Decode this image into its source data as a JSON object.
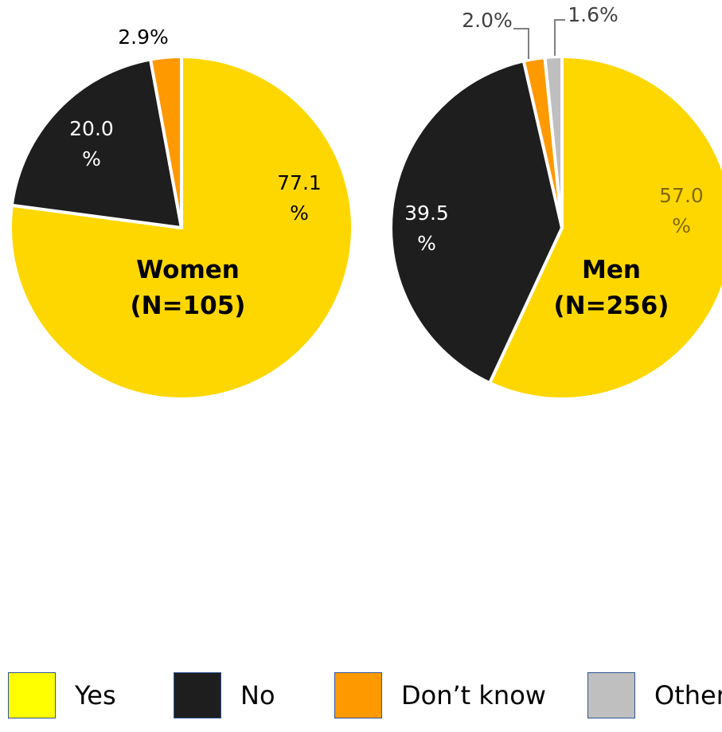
{
  "colors": {
    "Yes": "#ffd700",
    "No": "#1e1e1e",
    "Dont_know": "#ff9900",
    "Other": "#bfbfbf"
  },
  "chart_data": [
    {
      "type": "pie",
      "center_label_line1": "Women",
      "center_label_line2": "(N=105)",
      "slices": [
        {
          "category": "Yes",
          "value": 77.1,
          "label_line1": "77.1",
          "label_line2": "%"
        },
        {
          "category": "No",
          "value": 20.0,
          "label_line1": "20.0",
          "label_line2": "%"
        },
        {
          "category": "Don’t know",
          "value": 2.9,
          "label_line1": "2.9%",
          "label_line2": ""
        }
      ]
    },
    {
      "type": "pie",
      "center_label_line1": "Men",
      "center_label_line2": "(N=256)",
      "slices": [
        {
          "category": "Yes",
          "value": 57.0,
          "label_line1": "57.0",
          "label_line2": "%"
        },
        {
          "category": "No",
          "value": 39.5,
          "label_line1": "39.5",
          "label_line2": "%"
        },
        {
          "category": "Don’t know",
          "value": 2.0,
          "label_line1": "2.0%",
          "label_line2": ""
        },
        {
          "category": "Other",
          "value": 1.6,
          "label_line1": "1.6%",
          "label_line2": ""
        }
      ]
    }
  ],
  "legend": [
    {
      "label": "Yes",
      "color": "#ffff00"
    },
    {
      "label": "No",
      "color": "#1e1e1e"
    },
    {
      "label": "Don’t know",
      "color": "#ff9900"
    },
    {
      "label": "Other",
      "color": "#bfbfbf"
    }
  ]
}
